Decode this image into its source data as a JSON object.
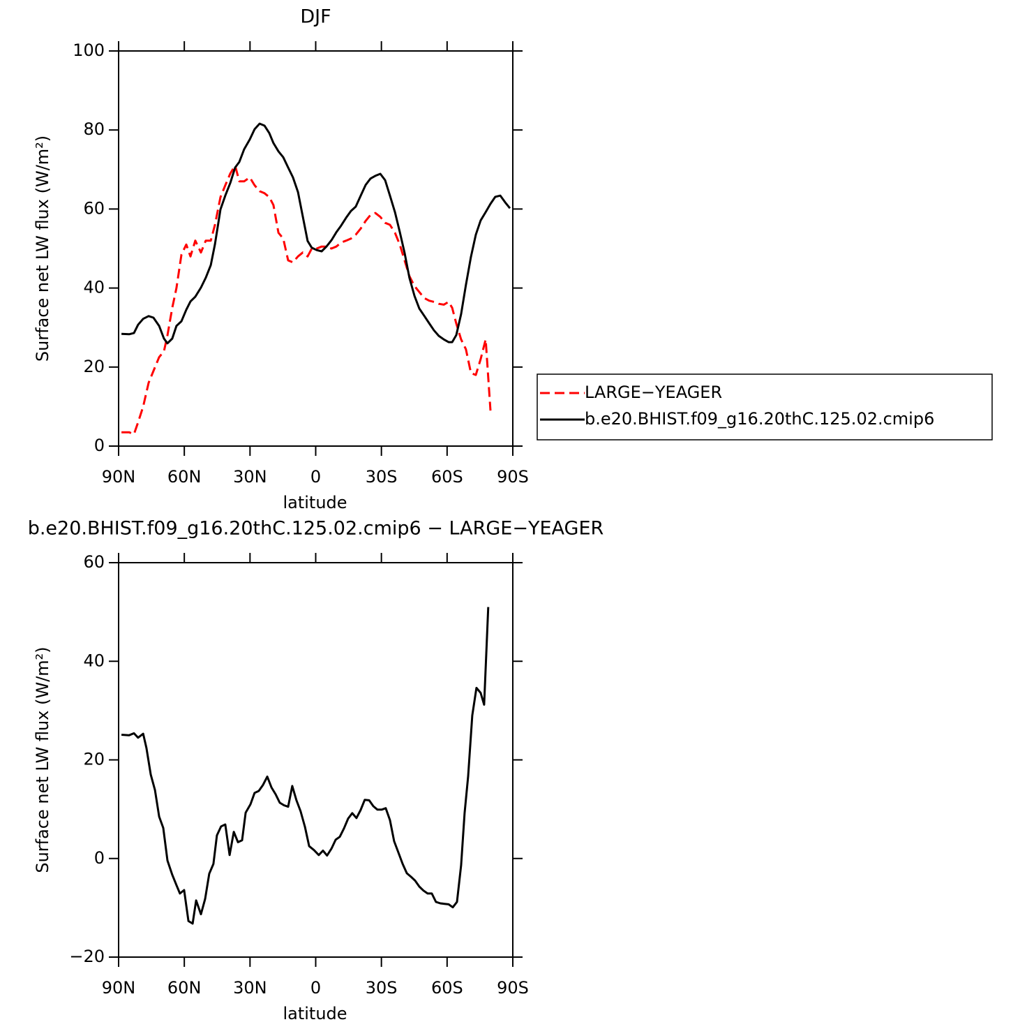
{
  "chart_data": [
    {
      "type": "line",
      "title": "DJF",
      "xlabel": "latitude",
      "ylabel": "Surface net LW flux (W/m²)",
      "xlim": [
        90,
        -90
      ],
      "ylim": [
        0,
        100
      ],
      "xticks": [
        {
          "value": 90,
          "label": "90N"
        },
        {
          "value": 60,
          "label": "60N"
        },
        {
          "value": 30,
          "label": "30N"
        },
        0,
        {
          "value": -30,
          "label": "30S"
        },
        {
          "value": -60,
          "label": "60S"
        },
        {
          "value": -90,
          "label": "90S"
        }
      ],
      "yticks": [
        0,
        20,
        40,
        60,
        80,
        100
      ],
      "legend": "outside right",
      "x": [
        88.7,
        85.2,
        83.0,
        81.1,
        78.8,
        76.3,
        74.1,
        71.5,
        69.3,
        67.7,
        65.5,
        63.6,
        61.3,
        59.1,
        57.2,
        55.0,
        52.4,
        50.2,
        47.9,
        46.0,
        43.5,
        41.3,
        39.0,
        36.8,
        34.9,
        32.7,
        30.1,
        27.9,
        25.6,
        23.4,
        21.2,
        19.3,
        17.0,
        14.8,
        12.6,
        10.4,
        8.1,
        5.9,
        3.7,
        1.8,
        -0.5,
        -2.7,
        -4.9,
        -7.2,
        -9.4,
        -11.6,
        -13.9,
        -16.1,
        -18.3,
        -20.5,
        -22.8,
        -25.0,
        -27.2,
        -29.5,
        -31.7,
        -33.9,
        -36.2,
        -38.4,
        -40.6,
        -42.8,
        -45.1,
        -47.3,
        -49.5,
        -51.8,
        -54.0,
        -56.2,
        -58.5,
        -60.7,
        -62.3,
        -64.2,
        -66.4,
        -68.6,
        -70.9,
        -73.1,
        -75.3,
        -77.6,
        -79.8,
        -82.0,
        -84.3,
        -86.5,
        -88.7
      ],
      "series": [
        {
          "name": "LARGE−YEAGER",
          "color": "#ff0000",
          "dash": "dashed",
          "values": [
            3.5,
            3.5,
            3.0,
            6,
            10,
            16,
            19,
            22.5,
            24,
            28,
            35,
            40,
            48.5,
            51,
            48,
            52,
            49,
            52,
            52,
            56,
            63,
            66,
            69,
            71,
            67,
            67,
            68,
            66,
            64.5,
            64,
            63,
            61,
            54,
            52.5,
            47,
            46.5,
            48,
            49,
            48,
            50,
            50,
            50.5,
            50.5,
            50,
            50.5,
            51.5,
            52,
            52.5,
            53.5,
            55,
            57,
            58.5,
            59,
            58,
            56.5,
            56,
            54,
            51,
            47,
            43,
            40.5,
            39,
            37.5,
            36.8,
            36.5,
            36,
            35.8,
            36.5,
            35,
            31,
            27,
            24.5,
            18.5,
            18,
            22,
            27,
            9,
            null,
            null,
            null,
            null
          ]
        },
        {
          "name": "b.e20.BHIST.f09_g16.20thC.125.02.cmip6",
          "color": "#000000",
          "dash": "solid",
          "values": [
            28.4,
            28.3,
            28.6,
            30.7,
            32.2,
            32.9,
            32.5,
            30.4,
            27.2,
            26.0,
            27.2,
            30.4,
            31.6,
            34.5,
            36.6,
            37.8,
            40.1,
            42.6,
            45.8,
            51.1,
            59.9,
            63.4,
            66.6,
            70.5,
            71.9,
            75.1,
            77.6,
            80.2,
            81.6,
            81.1,
            79.2,
            76.7,
            74.6,
            73.1,
            70.5,
            68.0,
            64.3,
            58.1,
            51.9,
            50.2,
            49.6,
            49.3,
            50.5,
            52.1,
            54.1,
            55.8,
            57.8,
            59.5,
            60.6,
            63.3,
            66.1,
            67.7,
            68.4,
            68.9,
            67.3,
            63.4,
            59.2,
            54.2,
            48.9,
            42.6,
            38.0,
            34.8,
            33.0,
            31.1,
            29.3,
            27.9,
            27.0,
            26.3,
            26.3,
            28.1,
            33.4,
            40.8,
            47.9,
            53.5,
            57.1,
            59.2,
            61.3,
            63.1,
            63.4,
            61.7,
            60.2
          ]
        }
      ]
    },
    {
      "type": "line",
      "title": "b.e20.BHIST.f09_g16.20thC.125.02.cmip6 − LARGE−YEAGER",
      "xlabel": "latitude",
      "ylabel": "Surface net LW flux (W/m²)",
      "xlim": [
        90,
        -90
      ],
      "ylim": [
        -20,
        60
      ],
      "xticks": [
        {
          "value": 90,
          "label": "90N"
        },
        {
          "value": 60,
          "label": "60N"
        },
        {
          "value": 30,
          "label": "30N"
        },
        0,
        {
          "value": -30,
          "label": "30S"
        },
        {
          "value": -60,
          "label": "60S"
        },
        {
          "value": -90,
          "label": "90S"
        }
      ],
      "yticks": [
        {
          "value": -20,
          "label": "−20"
        },
        0,
        20,
        40,
        60
      ],
      "x": [
        88.7,
        85.2,
        83.0,
        81.1,
        78.8,
        77.3,
        75.3,
        73.4,
        71.5,
        69.6,
        67.7,
        65.5,
        63.6,
        62.0,
        60.1,
        58.1,
        56.2,
        54.6,
        52.4,
        50.5,
        48.6,
        46.7,
        45.1,
        43.2,
        41.3,
        39.3,
        37.4,
        35.5,
        33.6,
        32.0,
        29.8,
        27.9,
        26.0,
        24.1,
        22.1,
        20.2,
        18.3,
        16.4,
        14.5,
        12.6,
        10.7,
        8.8,
        6.9,
        4.9,
        3.0,
        0.8,
        -1.4,
        -3.3,
        -5.2,
        -7.2,
        -9.1,
        -11.0,
        -12.9,
        -14.8,
        -16.7,
        -18.6,
        -20.5,
        -22.4,
        -24.4,
        -26.3,
        -28.2,
        -30.1,
        -32.0,
        -33.9,
        -35.8,
        -37.7,
        -39.7,
        -41.6,
        -43.5,
        -45.4,
        -47.3,
        -49.2,
        -51.1,
        -53.0,
        -54.9,
        -56.9,
        -58.8,
        -60.7,
        -62.6,
        -64.5,
        -66.4,
        -68.0,
        -69.6,
        -71.5,
        -73.4,
        -75.3,
        -76.9,
        -78.8
      ],
      "series": [
        {
          "color": "#000000",
          "dash": "solid",
          "values": [
            25.1,
            25,
            25.4,
            24.5,
            25.3,
            22.4,
            17,
            13.9,
            8.5,
            6.2,
            -0.4,
            -3.3,
            -5.4,
            -7.1,
            -6.4,
            -12.7,
            -13.2,
            -8.5,
            -11.3,
            -8.2,
            -3.1,
            -1.1,
            4.7,
            6.5,
            6.9,
            0.7,
            5.4,
            3.3,
            3.7,
            9.3,
            11,
            13.3,
            13.7,
            14.9,
            16.6,
            14.4,
            13,
            11.3,
            10.8,
            10.5,
            14.7,
            11.8,
            9.6,
            6.4,
            2.5,
            1.7,
            0.7,
            1.6,
            0.6,
            2,
            3.8,
            4.4,
            6.1,
            8.1,
            9.2,
            8.2,
            9.8,
            11.9,
            11.8,
            10.6,
            9.9,
            9.9,
            10.2,
            7.8,
            3.5,
            1.3,
            -1.1,
            -3,
            -3.7,
            -4.5,
            -5.7,
            -6.5,
            -7.1,
            -7.1,
            -8.8,
            -9.1,
            -9.2,
            -9.3,
            -9.9,
            -8.8,
            -1.4,
            9.2,
            16.7,
            29,
            34.6,
            33.6,
            31.2,
            51
          ]
        }
      ]
    }
  ]
}
